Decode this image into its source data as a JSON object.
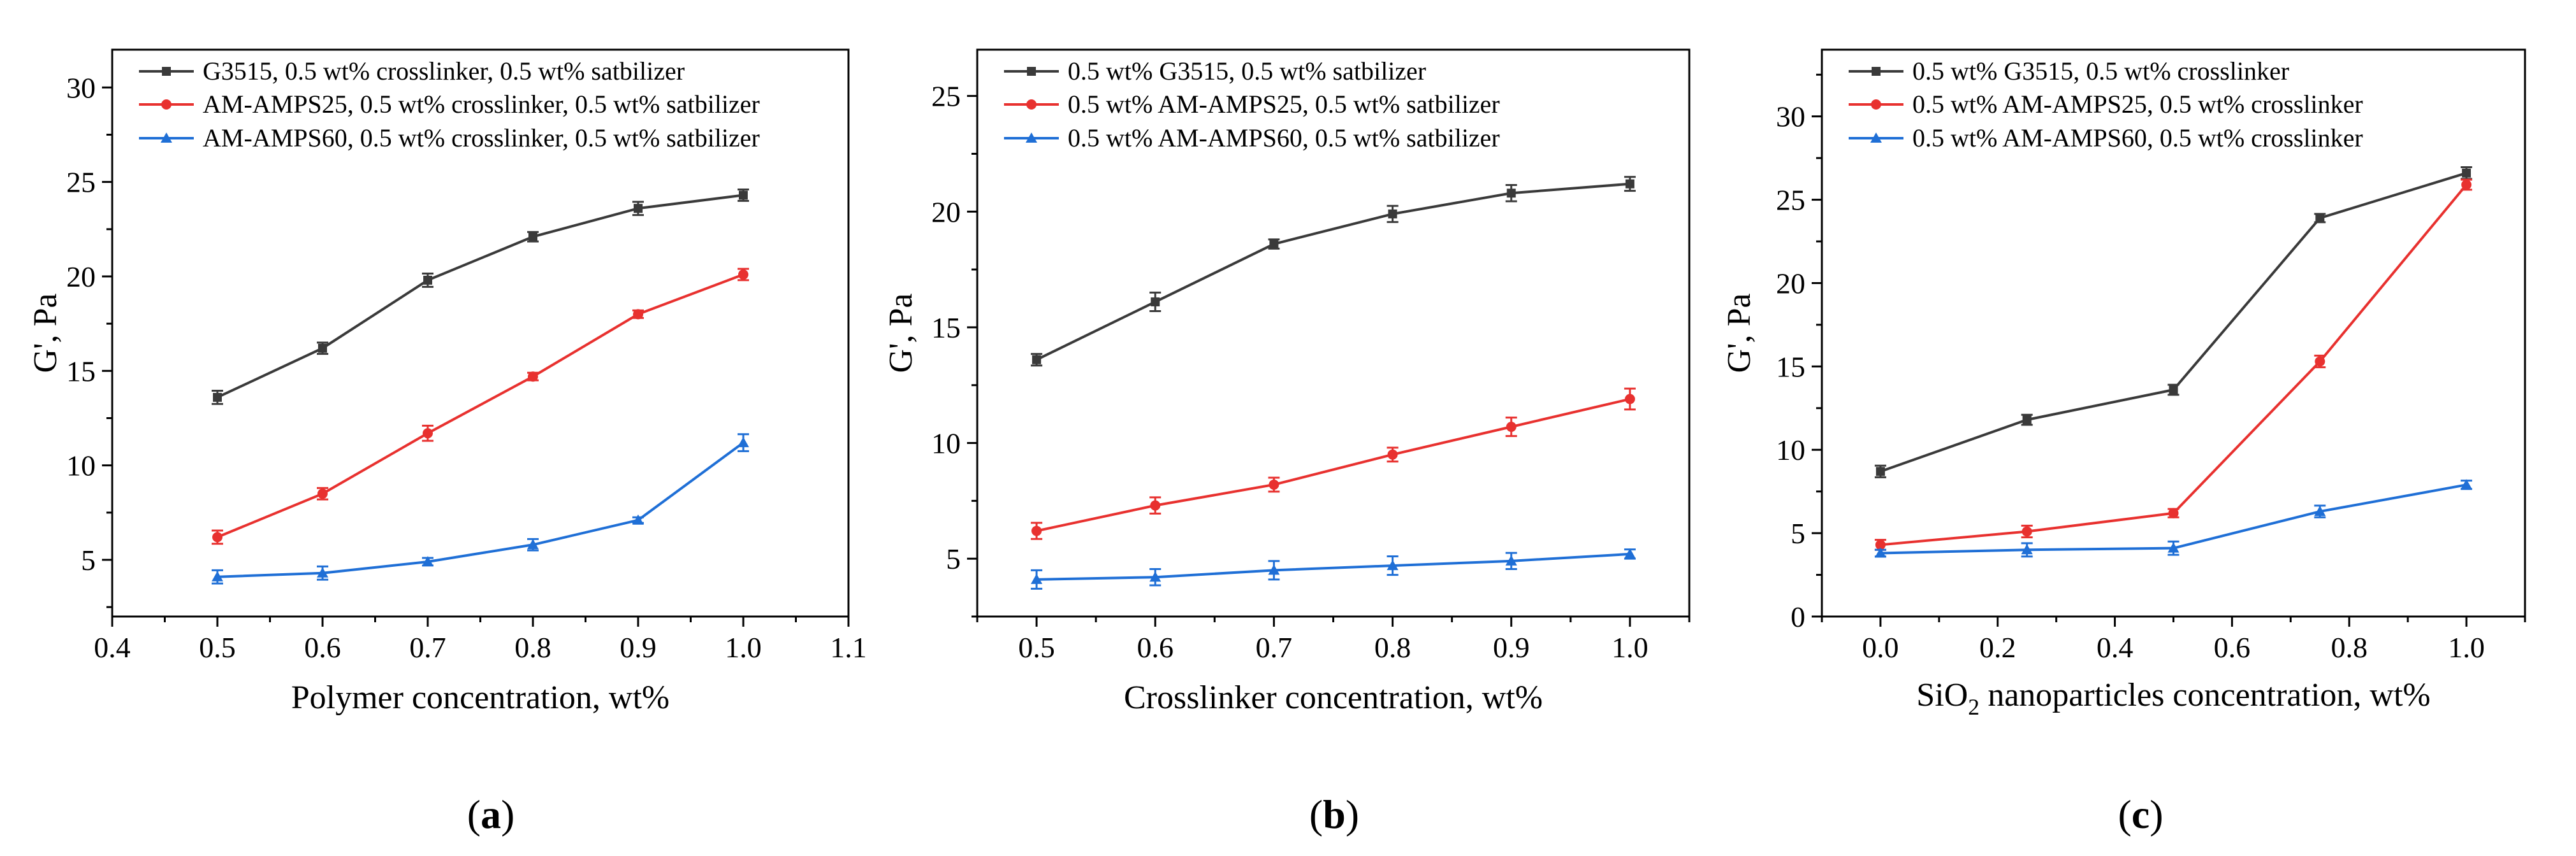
{
  "colors": {
    "G3515": "#3a3a3a",
    "AMAMPS25": "#e8312f",
    "AMAMPS60": "#1f6fd6"
  },
  "chart_data": [
    {
      "type": "line",
      "panel_label_parts": [
        "(",
        "a",
        ")"
      ],
      "xlabel": "Polymer concentration, wt%",
      "ylabel": "G', Pa",
      "xlim": [
        0.4,
        1.1
      ],
      "ylim": [
        2,
        32
      ],
      "xticks": [
        "0.4",
        "0.5",
        "0.6",
        "0.7",
        "0.8",
        "0.9",
        "1.0",
        "1.1"
      ],
      "yticks": [
        "5",
        "10",
        "15",
        "20",
        "25",
        "30"
      ],
      "x": [
        0.5,
        0.6,
        0.7,
        0.8,
        0.9,
        1.0
      ],
      "legend_position": "top-left",
      "series": [
        {
          "name": "G3515, 0.5 wt% crosslinker, 0.5 wt% satbilizer",
          "color": "#3a3a3a",
          "marker": "square",
          "values": [
            13.6,
            16.2,
            19.8,
            22.1,
            23.6,
            24.3
          ],
          "errors": [
            0.35,
            0.3,
            0.35,
            0.25,
            0.35,
            0.3
          ]
        },
        {
          "name": "AM-AMPS25, 0.5 wt% crosslinker, 0.5 wt% satbilizer",
          "color": "#e8312f",
          "marker": "circle",
          "values": [
            6.2,
            8.5,
            11.7,
            14.7,
            18.0,
            20.1
          ],
          "errors": [
            0.35,
            0.3,
            0.4,
            0.2,
            0.2,
            0.3
          ]
        },
        {
          "name": "AM-AMPS60, 0.5 wt% crosslinker, 0.5 wt% satbilizer",
          "color": "#1f6fd6",
          "marker": "triangle",
          "values": [
            4.1,
            4.3,
            4.9,
            5.8,
            7.1,
            11.2
          ],
          "errors": [
            0.35,
            0.35,
            0.2,
            0.3,
            0.15,
            0.45
          ]
        }
      ]
    },
    {
      "type": "line",
      "panel_label_parts": [
        "(",
        "b",
        ")"
      ],
      "xlabel": "Crosslinker concentration, wt%",
      "ylabel": "G', Pa",
      "xlim": [
        0.45,
        1.05
      ],
      "ylim": [
        2.5,
        27
      ],
      "xticks": [
        "0.5",
        "0.6",
        "0.7",
        "0.8",
        "0.9",
        "1.0"
      ],
      "yticks": [
        "5",
        "10",
        "15",
        "20",
        "25"
      ],
      "x": [
        0.5,
        0.6,
        0.7,
        0.8,
        0.9,
        1.0
      ],
      "legend_position": "top-left",
      "series": [
        {
          "name": "0.5 wt% G3515, 0.5 wt% satbilizer",
          "color": "#3a3a3a",
          "marker": "square",
          "values": [
            13.6,
            16.1,
            18.6,
            19.9,
            20.8,
            21.2
          ],
          "errors": [
            0.25,
            0.4,
            0.2,
            0.35,
            0.35,
            0.3
          ]
        },
        {
          "name": "0.5 wt% AM-AMPS25, 0.5 wt% satbilizer",
          "color": "#e8312f",
          "marker": "circle",
          "values": [
            6.2,
            7.3,
            8.2,
            9.5,
            10.7,
            11.9
          ],
          "errors": [
            0.35,
            0.35,
            0.3,
            0.3,
            0.4,
            0.45
          ]
        },
        {
          "name": "0.5 wt% AM-AMPS60, 0.5 wt% satbilizer",
          "color": "#1f6fd6",
          "marker": "triangle",
          "values": [
            4.1,
            4.2,
            4.5,
            4.7,
            4.9,
            5.2
          ],
          "errors": [
            0.4,
            0.35,
            0.4,
            0.4,
            0.35,
            0.2
          ]
        }
      ]
    },
    {
      "type": "line",
      "panel_label_parts": [
        "(",
        "c",
        ")"
      ],
      "xlabel_parts": [
        "SiO",
        "2",
        " nanoparticles concentration, wt%"
      ],
      "ylabel": "G', Pa",
      "xlim": [
        -0.1,
        1.1
      ],
      "ylim": [
        0,
        34
      ],
      "xticks": [
        "0.0",
        "0.2",
        "0.4",
        "0.6",
        "0.8",
        "1.0"
      ],
      "yticks": [
        "0",
        "5",
        "10",
        "15",
        "20",
        "25",
        "30"
      ],
      "x": [
        0.0,
        0.25,
        0.5,
        0.75,
        1.0
      ],
      "legend_position": "top-left",
      "series": [
        {
          "name": "0.5 wt% G3515, 0.5 wt% crosslinker",
          "color": "#3a3a3a",
          "marker": "square",
          "values": [
            8.7,
            11.8,
            13.6,
            23.9,
            26.6
          ],
          "errors": [
            0.35,
            0.3,
            0.3,
            0.25,
            0.35
          ]
        },
        {
          "name": "0.5 wt% AM-AMPS25, 0.5 wt% crosslinker",
          "color": "#e8312f",
          "marker": "circle",
          "values": [
            4.3,
            5.1,
            6.2,
            15.3,
            25.9
          ],
          "errors": [
            0.3,
            0.35,
            0.25,
            0.35,
            0.3
          ]
        },
        {
          "name": "0.5 wt% AM-AMPS60, 0.5 wt% crosslinker",
          "color": "#1f6fd6",
          "marker": "triangle",
          "values": [
            3.8,
            4.0,
            4.1,
            6.3,
            7.9
          ],
          "errors": [
            0.2,
            0.4,
            0.4,
            0.35,
            0.25
          ]
        }
      ]
    }
  ]
}
